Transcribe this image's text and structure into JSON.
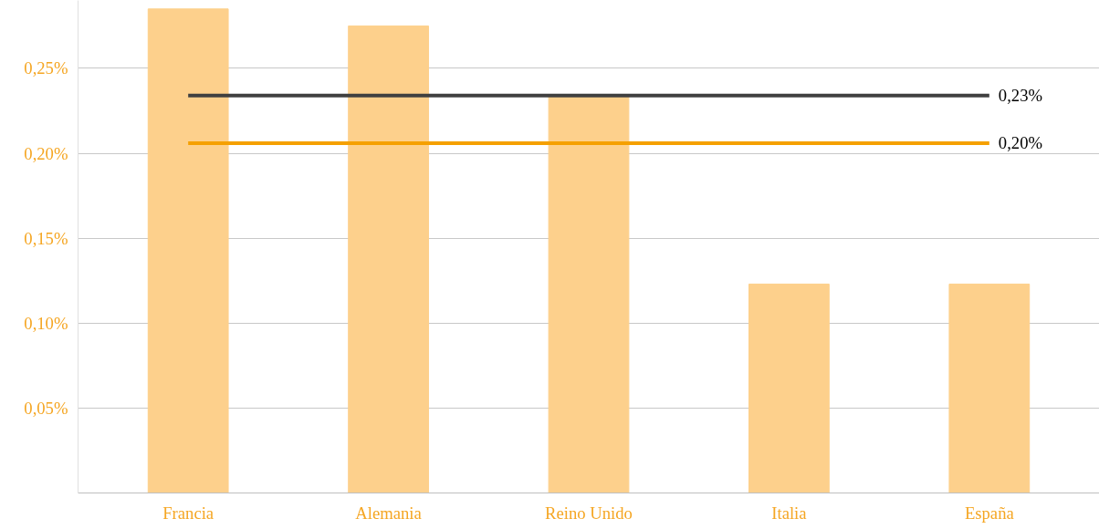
{
  "chart_data": {
    "type": "bar",
    "categories": [
      "Francia",
      "Alemania",
      "Reino Unido",
      "Italia",
      "España"
    ],
    "series": [
      {
        "color": "#fdd08c",
        "values": [
          0.285,
          0.275,
          0.234,
          0.123,
          0.123
        ]
      },
      {
        "type": "line",
        "color": "#404040",
        "values": [
          0.234,
          0.234,
          0.234,
          0.234,
          0.234
        ]
      },
      {
        "type": "line",
        "color": "#f5a000",
        "values": [
          0.206,
          0.206,
          0.206,
          0.206,
          0.206
        ]
      }
    ],
    "annotations": [
      {
        "text": "0,23%",
        "x": "España",
        "y": 0.234
      },
      {
        "text": "0,20%",
        "x": "España",
        "y": 0.206
      }
    ],
    "ylim": [
      0,
      0.29
    ],
    "yticks": [
      {
        "value": 0.05,
        "label": "0,05%"
      },
      {
        "value": 0.1,
        "label": "0,10%"
      },
      {
        "value": 0.15,
        "label": "0,15%"
      },
      {
        "value": 0.2,
        "label": "0,20%"
      },
      {
        "value": 0.25,
        "label": "0,25%"
      }
    ],
    "grid": "y",
    "marker": "none",
    "line_style": "solid"
  }
}
